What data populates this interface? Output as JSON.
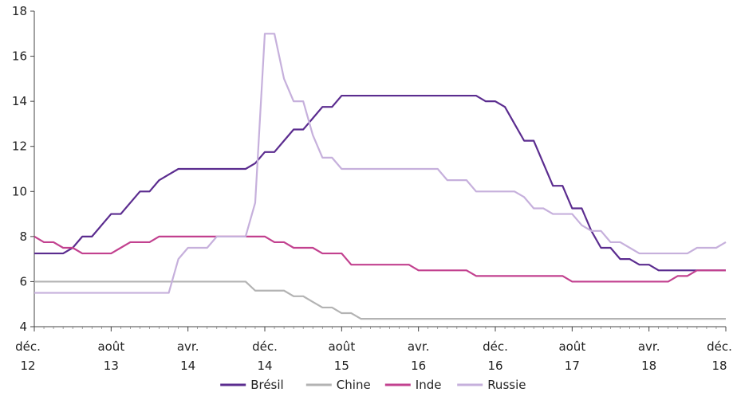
{
  "chart_data": {
    "type": "line",
    "title": "",
    "xlabel": "",
    "ylabel": "",
    "ylim": [
      4,
      18
    ],
    "yticks": [
      4,
      6,
      8,
      10,
      12,
      14,
      16,
      18
    ],
    "xlim": [
      "2012-12",
      "2018-12"
    ],
    "xticks": [
      {
        "date": "2012-12",
        "line1": "déc.",
        "line2": "12"
      },
      {
        "date": "2013-08",
        "line1": "août",
        "line2": "13"
      },
      {
        "date": "2014-04",
        "line1": "avr.",
        "line2": "14"
      },
      {
        "date": "2014-12",
        "line1": "déc.",
        "line2": "14"
      },
      {
        "date": "2015-08",
        "line1": "août",
        "line2": "15"
      },
      {
        "date": "2016-04",
        "line1": "avr.",
        "line2": "16"
      },
      {
        "date": "2016-12",
        "line1": "déc.",
        "line2": "16"
      },
      {
        "date": "2017-08",
        "line1": "août",
        "line2": "17"
      },
      {
        "date": "2018-04",
        "line1": "avr.",
        "line2": "18"
      },
      {
        "date": "2018-12",
        "line1": "déc.",
        "line2": "18"
      }
    ],
    "grid": false,
    "legend_position": "bottom",
    "series": [
      {
        "name": "Brésil",
        "color": "#5b2c8f",
        "points": [
          [
            "2012-12",
            7.25
          ],
          [
            "2013-01",
            7.25
          ],
          [
            "2013-02",
            7.25
          ],
          [
            "2013-03",
            7.25
          ],
          [
            "2013-04",
            7.5
          ],
          [
            "2013-05",
            8.0
          ],
          [
            "2013-06",
            8.0
          ],
          [
            "2013-07",
            8.5
          ],
          [
            "2013-08",
            9.0
          ],
          [
            "2013-09",
            9.0
          ],
          [
            "2013-10",
            9.5
          ],
          [
            "2013-11",
            10.0
          ],
          [
            "2013-12",
            10.0
          ],
          [
            "2014-01",
            10.5
          ],
          [
            "2014-02",
            10.75
          ],
          [
            "2014-03",
            11.0
          ],
          [
            "2014-04",
            11.0
          ],
          [
            "2014-05",
            11.0
          ],
          [
            "2014-06",
            11.0
          ],
          [
            "2014-07",
            11.0
          ],
          [
            "2014-08",
            11.0
          ],
          [
            "2014-09",
            11.0
          ],
          [
            "2014-10",
            11.0
          ],
          [
            "2014-11",
            11.25
          ],
          [
            "2014-12",
            11.75
          ],
          [
            "2015-01",
            11.75
          ],
          [
            "2015-02",
            12.25
          ],
          [
            "2015-03",
            12.75
          ],
          [
            "2015-04",
            12.75
          ],
          [
            "2015-05",
            13.25
          ],
          [
            "2015-06",
            13.75
          ],
          [
            "2015-07",
            13.75
          ],
          [
            "2015-08",
            14.25
          ],
          [
            "2015-09",
            14.25
          ],
          [
            "2015-10",
            14.25
          ],
          [
            "2015-11",
            14.25
          ],
          [
            "2015-12",
            14.25
          ],
          [
            "2016-01",
            14.25
          ],
          [
            "2016-02",
            14.25
          ],
          [
            "2016-03",
            14.25
          ],
          [
            "2016-04",
            14.25
          ],
          [
            "2016-05",
            14.25
          ],
          [
            "2016-06",
            14.25
          ],
          [
            "2016-07",
            14.25
          ],
          [
            "2016-08",
            14.25
          ],
          [
            "2016-09",
            14.25
          ],
          [
            "2016-10",
            14.25
          ],
          [
            "2016-11",
            14.0
          ],
          [
            "2016-12",
            14.0
          ],
          [
            "2017-01",
            13.75
          ],
          [
            "2017-02",
            13.0
          ],
          [
            "2017-03",
            12.25
          ],
          [
            "2017-04",
            12.25
          ],
          [
            "2017-05",
            11.25
          ],
          [
            "2017-06",
            10.25
          ],
          [
            "2017-07",
            10.25
          ],
          [
            "2017-08",
            9.25
          ],
          [
            "2017-09",
            9.25
          ],
          [
            "2017-10",
            8.25
          ],
          [
            "2017-11",
            7.5
          ],
          [
            "2017-12",
            7.5
          ],
          [
            "2018-01",
            7.0
          ],
          [
            "2018-02",
            7.0
          ],
          [
            "2018-03",
            6.75
          ],
          [
            "2018-04",
            6.75
          ],
          [
            "2018-05",
            6.5
          ],
          [
            "2018-06",
            6.5
          ],
          [
            "2018-07",
            6.5
          ],
          [
            "2018-08",
            6.5
          ],
          [
            "2018-09",
            6.5
          ],
          [
            "2018-10",
            6.5
          ],
          [
            "2018-11",
            6.5
          ],
          [
            "2018-12",
            6.5
          ]
        ]
      },
      {
        "name": "Chine",
        "color": "#b3b3b3",
        "points": [
          [
            "2012-12",
            6.0
          ],
          [
            "2013-06",
            6.0
          ],
          [
            "2014-06",
            6.0
          ],
          [
            "2014-10",
            6.0
          ],
          [
            "2014-11",
            5.6
          ],
          [
            "2014-12",
            5.6
          ],
          [
            "2015-01",
            5.6
          ],
          [
            "2015-02",
            5.6
          ],
          [
            "2015-03",
            5.35
          ],
          [
            "2015-04",
            5.35
          ],
          [
            "2015-05",
            5.1
          ],
          [
            "2015-06",
            4.85
          ],
          [
            "2015-07",
            4.85
          ],
          [
            "2015-08",
            4.6
          ],
          [
            "2015-09",
            4.6
          ],
          [
            "2015-10",
            4.35
          ],
          [
            "2016-06",
            4.35
          ],
          [
            "2017-06",
            4.35
          ],
          [
            "2018-06",
            4.35
          ],
          [
            "2018-12",
            4.35
          ]
        ]
      },
      {
        "name": "Inde",
        "color": "#c2418f",
        "points": [
          [
            "2012-12",
            8.0
          ],
          [
            "2013-01",
            7.75
          ],
          [
            "2013-02",
            7.75
          ],
          [
            "2013-03",
            7.5
          ],
          [
            "2013-04",
            7.5
          ],
          [
            "2013-05",
            7.25
          ],
          [
            "2013-06",
            7.25
          ],
          [
            "2013-07",
            7.25
          ],
          [
            "2013-08",
            7.25
          ],
          [
            "2013-09",
            7.5
          ],
          [
            "2013-10",
            7.75
          ],
          [
            "2013-11",
            7.75
          ],
          [
            "2013-12",
            7.75
          ],
          [
            "2014-01",
            8.0
          ],
          [
            "2014-06",
            8.0
          ],
          [
            "2014-12",
            8.0
          ],
          [
            "2015-01",
            7.75
          ],
          [
            "2015-02",
            7.75
          ],
          [
            "2015-03",
            7.5
          ],
          [
            "2015-04",
            7.5
          ],
          [
            "2015-05",
            7.5
          ],
          [
            "2015-06",
            7.25
          ],
          [
            "2015-07",
            7.25
          ],
          [
            "2015-08",
            7.25
          ],
          [
            "2015-09",
            6.75
          ],
          [
            "2016-03",
            6.75
          ],
          [
            "2016-04",
            6.5
          ],
          [
            "2016-09",
            6.5
          ],
          [
            "2016-10",
            6.25
          ],
          [
            "2017-07",
            6.25
          ],
          [
            "2017-08",
            6.0
          ],
          [
            "2018-05",
            6.0
          ],
          [
            "2018-06",
            6.0
          ],
          [
            "2018-07",
            6.25
          ],
          [
            "2018-08",
            6.25
          ],
          [
            "2018-09",
            6.5
          ],
          [
            "2018-12",
            6.5
          ]
        ]
      },
      {
        "name": "Russie",
        "color": "#c6b0dc",
        "points": [
          [
            "2012-12",
            5.5
          ],
          [
            "2013-06",
            5.5
          ],
          [
            "2014-02",
            5.5
          ],
          [
            "2014-03",
            7.0
          ],
          [
            "2014-04",
            7.5
          ],
          [
            "2014-05",
            7.5
          ],
          [
            "2014-06",
            7.5
          ],
          [
            "2014-07",
            8.0
          ],
          [
            "2014-08",
            8.0
          ],
          [
            "2014-09",
            8.0
          ],
          [
            "2014-10",
            8.0
          ],
          [
            "2014-11",
            9.5
          ],
          [
            "2014-12",
            17.0
          ],
          [
            "2015-01",
            17.0
          ],
          [
            "2015-02",
            15.0
          ],
          [
            "2015-03",
            14.0
          ],
          [
            "2015-04",
            14.0
          ],
          [
            "2015-05",
            12.5
          ],
          [
            "2015-06",
            11.5
          ],
          [
            "2015-07",
            11.5
          ],
          [
            "2015-08",
            11.0
          ],
          [
            "2015-09",
            11.0
          ],
          [
            "2016-06",
            11.0
          ],
          [
            "2016-07",
            10.5
          ],
          [
            "2016-08",
            10.5
          ],
          [
            "2016-09",
            10.5
          ],
          [
            "2016-10",
            10.0
          ],
          [
            "2017-02",
            10.0
          ],
          [
            "2017-03",
            9.75
          ],
          [
            "2017-04",
            9.25
          ],
          [
            "2017-05",
            9.25
          ],
          [
            "2017-06",
            9.0
          ],
          [
            "2017-07",
            9.0
          ],
          [
            "2017-08",
            9.0
          ],
          [
            "2017-09",
            8.5
          ],
          [
            "2017-10",
            8.25
          ],
          [
            "2017-11",
            8.25
          ],
          [
            "2017-12",
            7.75
          ],
          [
            "2018-01",
            7.75
          ],
          [
            "2018-02",
            7.5
          ],
          [
            "2018-03",
            7.25
          ],
          [
            "2018-04",
            7.25
          ],
          [
            "2018-05",
            7.25
          ],
          [
            "2018-06",
            7.25
          ],
          [
            "2018-07",
            7.25
          ],
          [
            "2018-08",
            7.25
          ],
          [
            "2018-09",
            7.5
          ],
          [
            "2018-10",
            7.5
          ],
          [
            "2018-11",
            7.5
          ],
          [
            "2018-12",
            7.75
          ]
        ]
      }
    ]
  }
}
